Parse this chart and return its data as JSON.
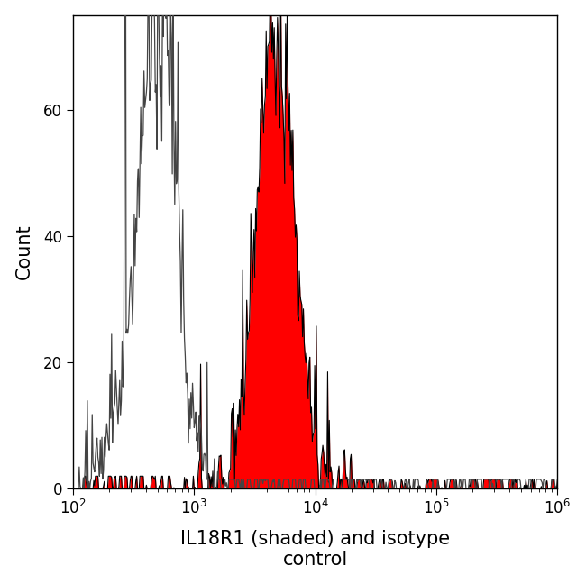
{
  "title": "",
  "xlabel": "IL18R1 (shaded) and isotype\ncontrol",
  "ylabel": "Count",
  "xlim_log": [
    2,
    6
  ],
  "ylim": [
    0,
    75
  ],
  "yticks": [
    0,
    20,
    40,
    60
  ],
  "background_color": "#ffffff",
  "isotype_color": "#444444",
  "il18r1_fill_color": "#ff0000",
  "il18r1_edge_color": "#000000",
  "xlabel_fontsize": 15,
  "ylabel_fontsize": 15,
  "tick_fontsize": 12,
  "isotype_peak_log": 2.72,
  "isotype_peak_height": 67,
  "il18r1_peak_log": 3.68,
  "il18r1_peak_height": 73
}
